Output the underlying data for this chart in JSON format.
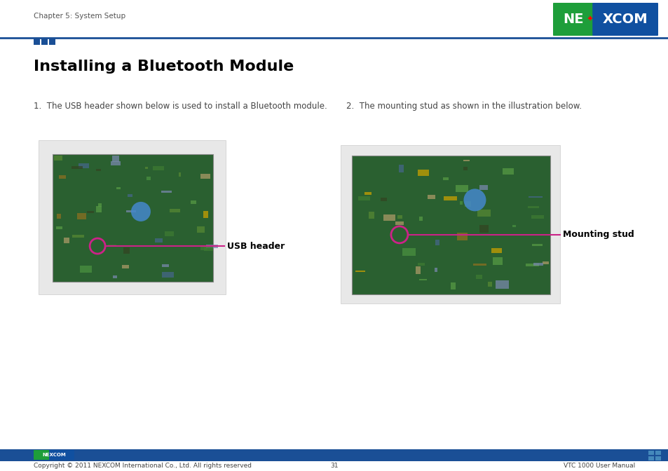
{
  "page_bg": "#ffffff",
  "header_text": "Chapter 5: System Setup",
  "header_text_color": "#555555",
  "header_text_size": 7.5,
  "logo_bg_green": "#1e9e3a",
  "logo_bg_blue": "#1050a0",
  "title": "Installing a Bluetooth Module",
  "title_color": "#000000",
  "title_size": 16,
  "step1_text": "1.  The USB header shown below is used to install a Bluetooth module.",
  "step2_text": "2.  The mounting stud as shown in the illustration below.",
  "step_text_size": 8.5,
  "step_text_color": "#444444",
  "label1": "USB header",
  "label2": "Mounting stud",
  "label_color": "#000000",
  "label_size": 9,
  "arrow_color": "#cc2288",
  "top_line_color": "#1a4f96",
  "sq1_color": "#1a4f96",
  "sq2_color": "#1a4f96",
  "sq3_color": "#1a4f96",
  "bottom_bar_color": "#1a4f96",
  "footer_left": "Copyright © 2011 NEXCOM International Co., Ltd. All rights reserved",
  "footer_center": "31",
  "footer_right": "VTC 1000 User Manual",
  "footer_text_size": 6.5,
  "footer_text_color": "#444444",
  "img1_board_color": "#2a6030",
  "img2_board_color": "#2a6030",
  "img_frame_color": "#cccccc",
  "img_bg_color": "#e8e8e8"
}
